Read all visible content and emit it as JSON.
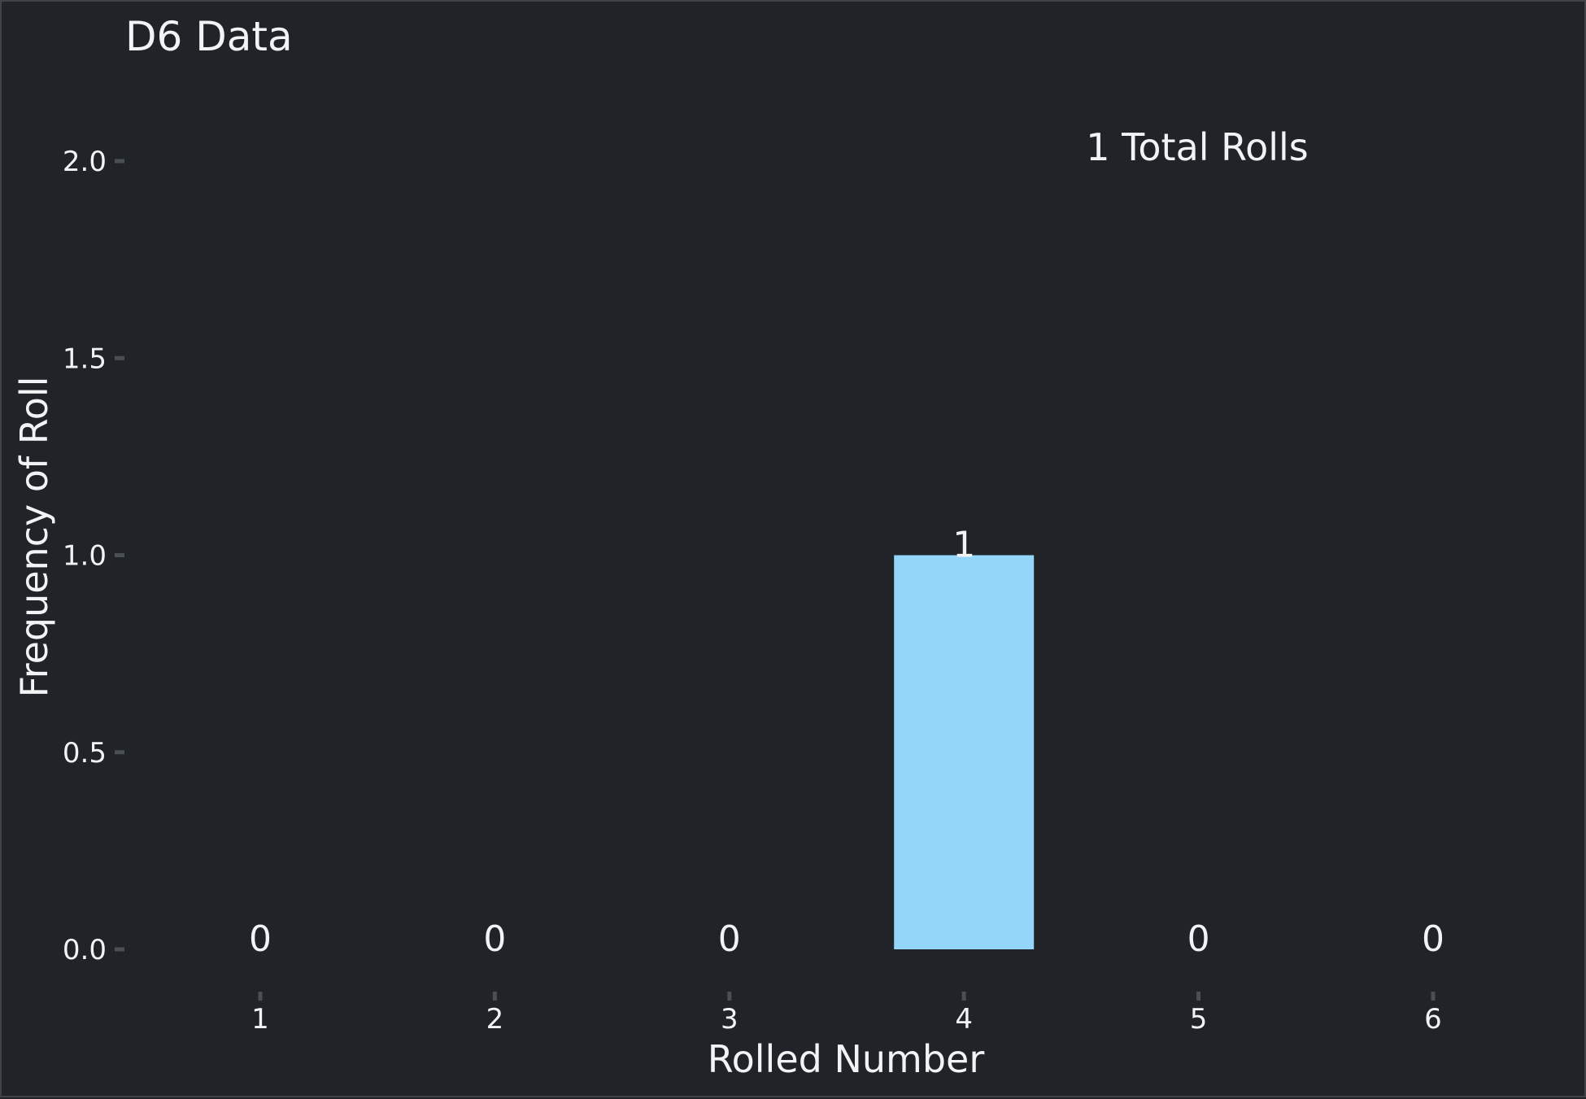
{
  "chart_data": {
    "type": "bar",
    "title": "D6 Data",
    "annotation": "1 Total Rolls",
    "xlabel": "Rolled Number",
    "ylabel": "Frequency of Roll",
    "categories": [
      "1",
      "2",
      "3",
      "4",
      "5",
      "6"
    ],
    "values": [
      0,
      0,
      0,
      1,
      0,
      0
    ],
    "data_labels": [
      "0",
      "0",
      "0",
      "1",
      "0",
      "0"
    ],
    "ylim": [
      0,
      2
    ],
    "yticks": [
      0,
      0.5,
      1,
      1.5,
      2
    ],
    "ytick_labels": [
      "0.0",
      "0.5",
      "1.0",
      "1.5",
      "2.0"
    ],
    "grid": false,
    "colors": {
      "background": "#202328",
      "bar": "#93d6fa",
      "text": "#f2f3f5",
      "tick": "#4a4e55"
    }
  }
}
